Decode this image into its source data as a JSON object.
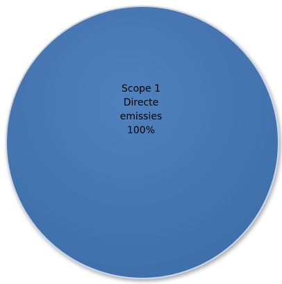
{
  "chart_data": {
    "type": "pie",
    "categories": [
      "Scope 1 Directe emissies"
    ],
    "values": [
      100
    ],
    "slices": [
      {
        "label_lines": [
          "Scope 1",
          "Directe",
          "emissies"
        ],
        "percent_label": "100%",
        "value": 100,
        "color": "#4f81bd"
      }
    ],
    "title": "",
    "legend": "none"
  }
}
